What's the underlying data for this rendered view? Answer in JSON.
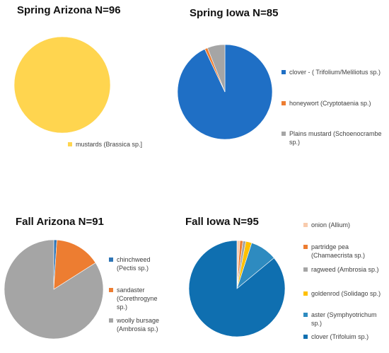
{
  "chart_data": [
    {
      "type": "pie",
      "title": "Spring Arizona N=96",
      "slices": [
        {
          "label": "mustards (Brassica sp.]",
          "value": 100,
          "color": "#FFD54F"
        }
      ]
    },
    {
      "type": "pie",
      "title": "Spring Iowa N=85",
      "slices": [
        {
          "label": "clover - ( Trifolium/Meliliotus sp.)",
          "value": 93,
          "color": "#1F6FC5"
        },
        {
          "label": "honeywort (Cryptotaenia sp.)",
          "value": 1,
          "color": "#ED7D31"
        },
        {
          "label": "Plains mustard (Schoenocrambe sp.)",
          "value": 6,
          "color": "#A5A5A5"
        }
      ]
    },
    {
      "type": "pie",
      "title": "Fall Arizona N=91",
      "slices": [
        {
          "label": "chinchweed (Pectis sp.)",
          "value": 1,
          "color": "#2E75B6"
        },
        {
          "label": "sandaster (Corethrogyne sp.)",
          "value": 15,
          "color": "#ED7D31"
        },
        {
          "label": "woolly bursage (Ambrosia sp.)",
          "value": 84,
          "color": "#A5A5A5"
        }
      ]
    },
    {
      "type": "pie",
      "title": "Fall Iowa N=95",
      "slices": [
        {
          "label": "onion (Allium)",
          "value": 1,
          "color": "#F8CBAD"
        },
        {
          "label": "partridge pea (Chamaecrista sp.)",
          "value": 1,
          "color": "#ED7D31"
        },
        {
          "label": "ragweed (Ambrosia sp.)",
          "value": 1,
          "color": "#A5A5A5"
        },
        {
          "label": "goldenrod (Solidago sp.)",
          "value": 2,
          "color": "#FFC000"
        },
        {
          "label": "aster (Symphyotrichum sp.)",
          "value": 9,
          "color": "#2E8BC0"
        },
        {
          "label": "clover (Trifoluim sp.)",
          "value": 86,
          "color": "#0F6FB0"
        }
      ]
    }
  ]
}
